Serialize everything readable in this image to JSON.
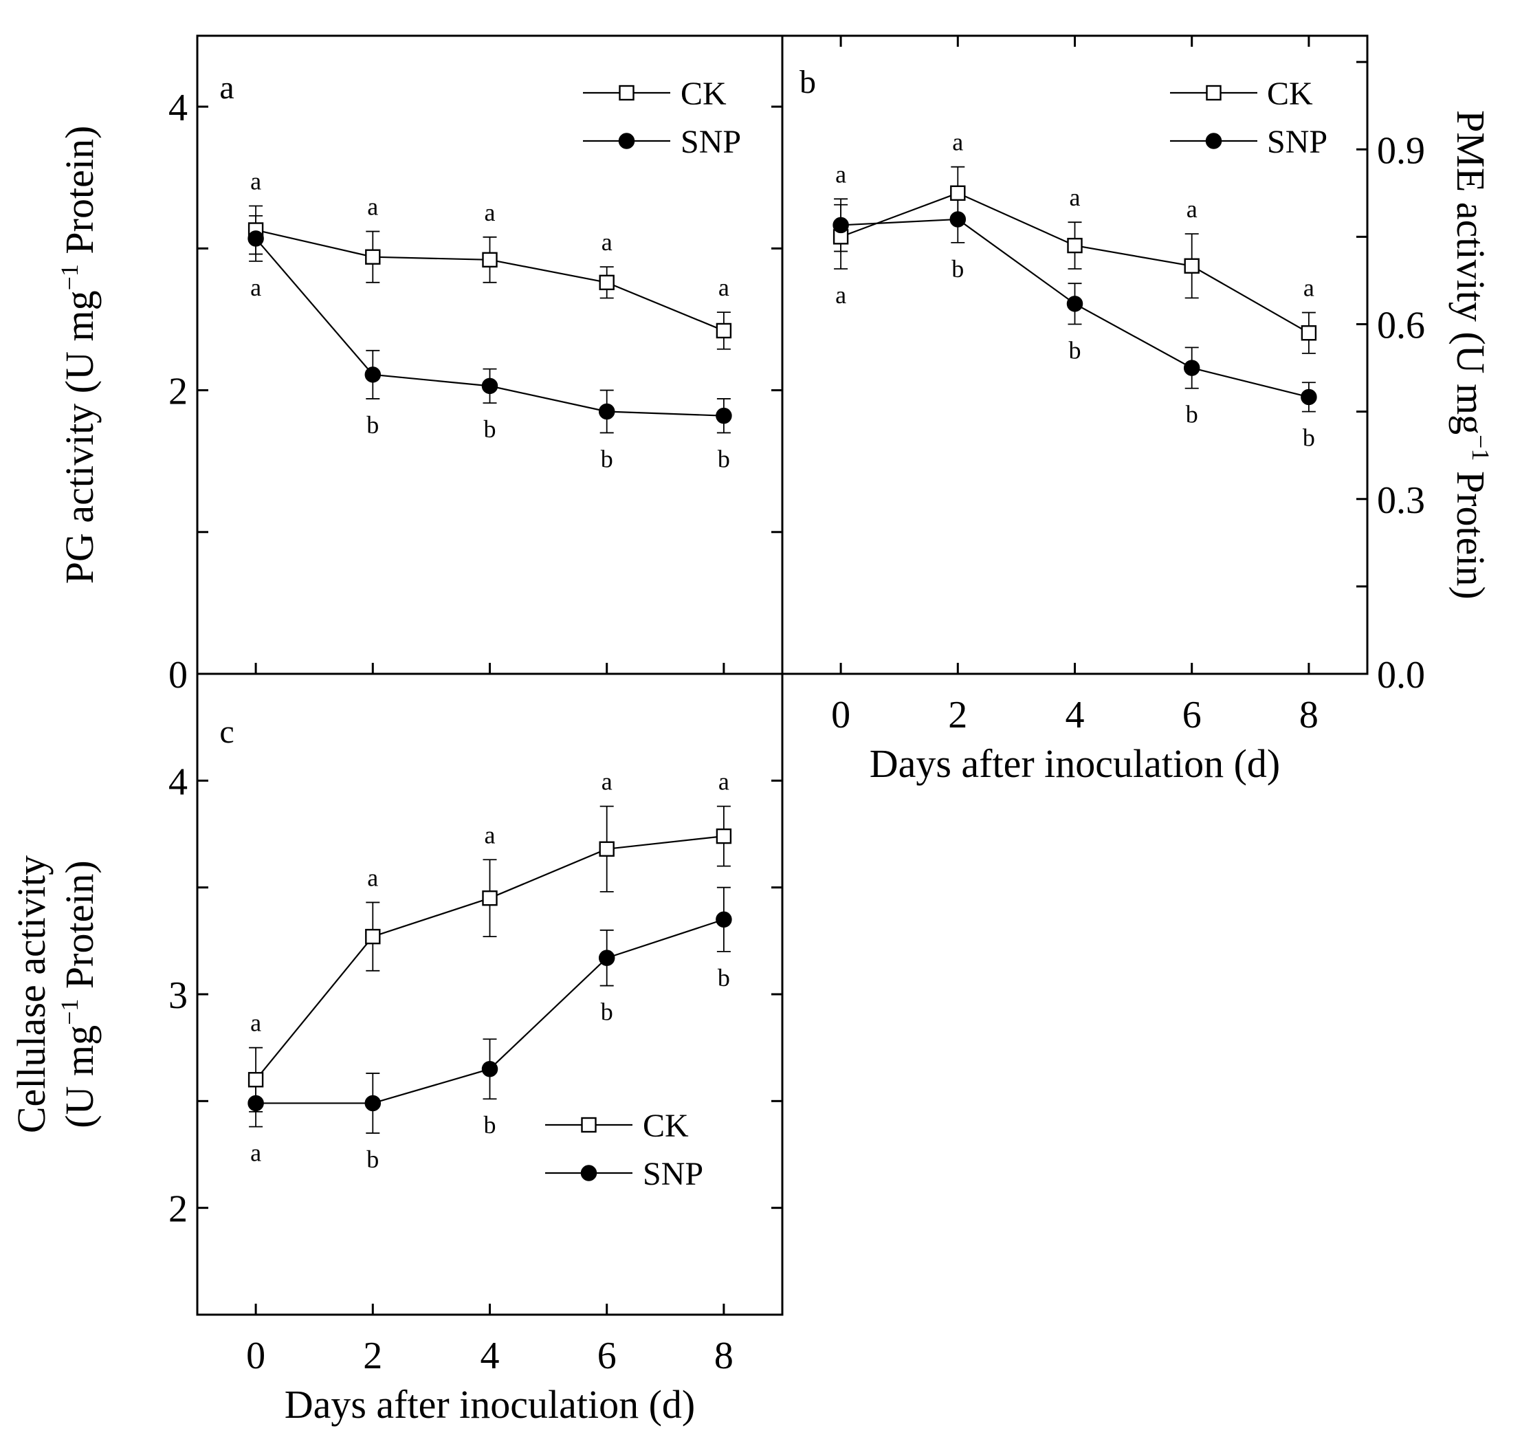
{
  "colors": {
    "line": "#000000",
    "open_fill": "#ffffff",
    "filled": "#000000",
    "background": "#ffffff"
  },
  "chart_data": [
    {
      "panel": "a",
      "type": "line",
      "x": [
        0,
        2,
        4,
        6,
        8
      ],
      "xlim": [
        -1,
        9
      ],
      "ylim": [
        0,
        4.5
      ],
      "yticks": [
        0,
        2,
        4
      ],
      "y_minor_ticks": [
        1,
        3
      ],
      "xlabel": "",
      "ylabel": "PG activity (U mg⁻¹ Protein)",
      "ylabel_parts": {
        "main": "PG activity (U mg",
        "sup": "−1",
        "tail": " Protein)"
      },
      "ylabel_side": "left",
      "legend_position": "top-right",
      "series": [
        {
          "name": "CK",
          "marker": "open-square",
          "values": [
            3.13,
            2.94,
            2.92,
            2.76,
            2.42
          ],
          "errors": [
            0.17,
            0.18,
            0.16,
            0.11,
            0.13
          ],
          "letters": [
            "a",
            "a",
            "a",
            "a",
            "a"
          ]
        },
        {
          "name": "SNP",
          "marker": "filled-circle",
          "values": [
            3.07,
            2.11,
            2.03,
            1.85,
            1.82
          ],
          "errors": [
            0.16,
            0.17,
            0.12,
            0.15,
            0.12
          ],
          "letters": [
            "a",
            "b",
            "b",
            "b",
            "b"
          ]
        }
      ]
    },
    {
      "panel": "b",
      "type": "line",
      "x": [
        0,
        2,
        4,
        6,
        8
      ],
      "xticks": [
        0,
        2,
        4,
        6,
        8
      ],
      "xlim": [
        -1,
        9
      ],
      "ylim": [
        0,
        1.095
      ],
      "yticks": [
        0.0,
        0.3,
        0.6,
        0.9
      ],
      "ytick_labels": [
        "0.0",
        "0.3",
        "0.6",
        "0.9"
      ],
      "y_minor_ticks": [
        0.15,
        0.45,
        0.75,
        1.05
      ],
      "xlabel": "Days after inoculation (d)",
      "ylabel": "PME activity (U mg⁻¹ Protein)",
      "ylabel_parts": {
        "main": "PME activity (U mg",
        "sup": "−1",
        "tail": " Protein)"
      },
      "ylabel_side": "right",
      "legend_position": "top-right",
      "series": [
        {
          "name": "CK",
          "marker": "open-square",
          "values": [
            0.75,
            0.825,
            0.735,
            0.7,
            0.585
          ],
          "errors": [
            0.055,
            0.045,
            0.04,
            0.055,
            0.035
          ],
          "letters": [
            "a",
            "a",
            "a",
            "a",
            "a"
          ]
        },
        {
          "name": "SNP",
          "marker": "filled-circle",
          "values": [
            0.77,
            0.78,
            0.635,
            0.525,
            0.475
          ],
          "errors": [
            0.045,
            0.04,
            0.035,
            0.035,
            0.025
          ],
          "letters": [
            "a",
            "b",
            "b",
            "b",
            "b"
          ]
        }
      ]
    },
    {
      "panel": "c",
      "type": "line",
      "x": [
        0,
        2,
        4,
        6,
        8
      ],
      "xticks": [
        0,
        2,
        4,
        6,
        8
      ],
      "xlim": [
        -1,
        9
      ],
      "ylim": [
        1.5,
        4.5
      ],
      "yticks": [
        2,
        3,
        4
      ],
      "y_minor_ticks": [
        2.5,
        3.5
      ],
      "xlabel": "Days after inoculation (d)",
      "ylabel_lines": [
        "Cellulase activity",
        "(U mg⁻¹ Protein)"
      ],
      "ylabel_parts": {
        "line1": "Cellulase activity",
        "main": "(U mg",
        "sup": "−1",
        "tail": " Protein)"
      },
      "ylabel_side": "left",
      "legend_position": "bottom-right",
      "series": [
        {
          "name": "CK",
          "marker": "open-square",
          "values": [
            2.6,
            3.27,
            3.45,
            3.68,
            3.74
          ],
          "errors": [
            0.15,
            0.16,
            0.18,
            0.2,
            0.14
          ],
          "letters": [
            "a",
            "a",
            "a",
            "a",
            "a"
          ]
        },
        {
          "name": "SNP",
          "marker": "filled-circle",
          "values": [
            2.49,
            2.49,
            2.65,
            3.17,
            3.35
          ],
          "errors": [
            0.11,
            0.14,
            0.14,
            0.13,
            0.15
          ],
          "letters": [
            "a",
            "b",
            "b",
            "b",
            "b"
          ]
        }
      ]
    }
  ]
}
